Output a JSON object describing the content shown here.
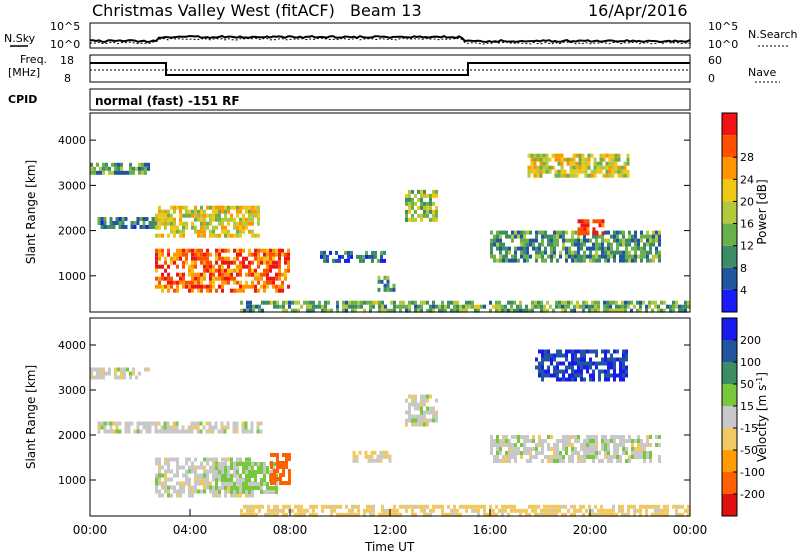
{
  "header": {
    "station": "Christmas Valley West (fitACF)",
    "beam": "Beam 13",
    "date": "16/Apr/2016"
  },
  "top_panels": {
    "nsky_label": "N.Sky",
    "nsearch_label": "N.Search",
    "nsky_ticks": [
      "10^5",
      "10^0"
    ],
    "nsearch_ticks": [
      "10^5",
      "10^0"
    ],
    "freq_label_1": "Freq.",
    "freq_label_2": "[MHz]",
    "freq_ticks": [
      "18",
      "8"
    ],
    "nave_label": "Nave",
    "nave_ticks": [
      "60",
      "0"
    ],
    "cpid_label": "CPID",
    "cpid_text": "normal (fast) -151 RF"
  },
  "colors": {
    "power": [
      "#1a1aff",
      "#2255a0",
      "#3c8c64",
      "#6ab04a",
      "#b4c83c",
      "#f0c814",
      "#ff9600",
      "#ff5000",
      "#f01414"
    ],
    "velocity": [
      "#e01010",
      "#ff6000",
      "#ff9c00",
      "#f0c864",
      "#c8c8c8",
      "#78c83c",
      "#3c8c64",
      "#2255a0",
      "#1a1aee"
    ]
  },
  "chart_data": [
    {
      "type": "heatmap",
      "title": "Power",
      "xlabel": "",
      "ylabel": "Slant Range [km]",
      "xlim_hours": [
        0,
        24
      ],
      "ylim": [
        200,
        4600
      ],
      "yticks": [
        1000,
        2000,
        3000,
        4000
      ],
      "colorbar": {
        "label": "Power [dB]",
        "tick_labels": [
          "4",
          "8",
          "12",
          "16",
          "20",
          "24",
          "28"
        ],
        "range": [
          0,
          32
        ]
      },
      "echo_regions": [
        {
          "t0": 0.0,
          "t1": 2.3,
          "r0": 3250,
          "r1": 3500,
          "level": 10
        },
        {
          "t0": 0.3,
          "t1": 2.6,
          "r0": 2050,
          "r1": 2300,
          "level": 8
        },
        {
          "t0": 2.6,
          "t1": 6.8,
          "r0": 1850,
          "r1": 2550,
          "level": 18
        },
        {
          "t0": 2.6,
          "t1": 8.0,
          "r0": 700,
          "r1": 1600,
          "level": 26
        },
        {
          "t0": 9.2,
          "t1": 11.8,
          "r0": 1350,
          "r1": 1550,
          "level": 6
        },
        {
          "t0": 11.5,
          "t1": 12.2,
          "r0": 700,
          "r1": 1000,
          "level": 10
        },
        {
          "t0": 12.6,
          "t1": 13.9,
          "r0": 2200,
          "r1": 2900,
          "level": 14
        },
        {
          "t0": 16.0,
          "t1": 22.8,
          "r0": 1300,
          "r1": 2000,
          "level": 10
        },
        {
          "t0": 17.5,
          "t1": 21.5,
          "r0": 3200,
          "r1": 3700,
          "level": 18
        },
        {
          "t0": 19.5,
          "t1": 20.5,
          "r0": 1950,
          "r1": 2250,
          "level": 28
        },
        {
          "t0": 6.0,
          "t1": 24.0,
          "r0": 200,
          "r1": 450,
          "level": 12
        }
      ]
    },
    {
      "type": "heatmap",
      "title": "Velocity",
      "xlabel": "Time UT",
      "ylabel": "Slant Range [km]",
      "xticks": [
        "00:00",
        "04:00",
        "08:00",
        "12:00",
        "16:00",
        "20:00",
        "00:00"
      ],
      "xlim_hours": [
        0,
        24
      ],
      "ylim": [
        200,
        4600
      ],
      "yticks": [
        1000,
        2000,
        3000,
        4000
      ],
      "colorbar": {
        "label": "Velocity [m s-1]",
        "label_main": "Velocity [m s",
        "label_sup": "-1",
        "label_end": "]",
        "tick_labels": [
          "-200",
          "-100",
          "-50",
          "-15",
          "15",
          "50",
          "100",
          "200"
        ]
      },
      "echo_regions": [
        {
          "t0": 0.0,
          "t1": 2.3,
          "r0": 3250,
          "r1": 3500,
          "level": 0
        },
        {
          "t0": 0.3,
          "t1": 6.8,
          "r0": 2050,
          "r1": 2300,
          "level": 0
        },
        {
          "t0": 2.6,
          "t1": 6.5,
          "r0": 650,
          "r1": 1500,
          "level": 0
        },
        {
          "t0": 5.0,
          "t1": 7.5,
          "r0": 700,
          "r1": 1400,
          "level": 20
        },
        {
          "t0": 7.2,
          "t1": 8.0,
          "r0": 900,
          "r1": 1600,
          "level": -150
        },
        {
          "t0": 10.5,
          "t1": 12.0,
          "r0": 1400,
          "r1": 1650,
          "level": -20
        },
        {
          "t0": 12.6,
          "t1": 13.9,
          "r0": 2200,
          "r1": 2900,
          "level": 0
        },
        {
          "t0": 16.0,
          "t1": 22.8,
          "r0": 1400,
          "r1": 2000,
          "level": 0
        },
        {
          "t0": 17.8,
          "t1": 21.5,
          "r0": 3200,
          "r1": 3900,
          "level": 200
        },
        {
          "t0": 6.0,
          "t1": 24.0,
          "r0": 200,
          "r1": 450,
          "level": -30
        }
      ]
    }
  ]
}
